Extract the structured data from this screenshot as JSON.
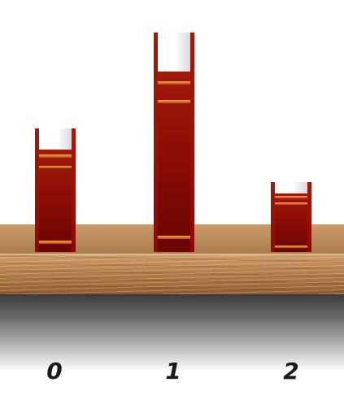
{
  "shelf": {
    "slots": [
      {
        "label": "0",
        "book_height_units": 3
      },
      {
        "label": "1",
        "book_height_units": 6
      },
      {
        "label": "2",
        "book_height_units": 2
      }
    ]
  },
  "colors": {
    "book_cover": "#8c0d05",
    "book_band": "#e08a2a",
    "shelf_wood": "#b98a5a",
    "label_text": "#1a1a1a"
  }
}
